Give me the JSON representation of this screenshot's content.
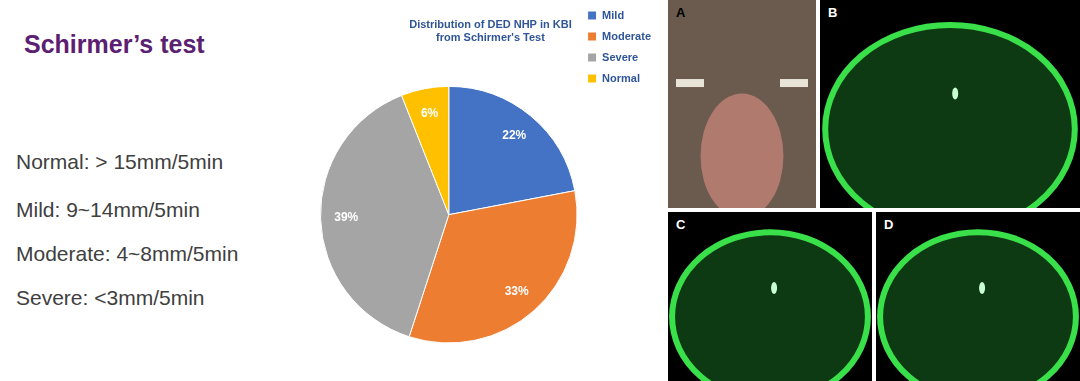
{
  "chart_data": {
    "type": "pie",
    "title": [
      "Distribution of DED NHP in KBI",
      "from Schirmer's Test"
    ],
    "categories": [
      "Mild",
      "Moderate",
      "Severe",
      "Normal"
    ],
    "values": [
      22,
      33,
      39,
      6
    ],
    "value_labels": [
      "22%",
      "33%",
      "39%",
      "6%"
    ],
    "colors": [
      "#4472c4",
      "#ed7d31",
      "#a5a5a5",
      "#ffc000"
    ],
    "legend": "right",
    "data_labels": true
  },
  "slide": {
    "heading": "Schirmer’s test",
    "criteria": [
      "Normal: > 15mm/5min",
      "Mild: 9~14mm/5min",
      "Moderate: 4~8mm/5min",
      "Severe: <3mm/5min"
    ],
    "photo_labels": [
      "A",
      "B",
      "C",
      "D"
    ]
  }
}
